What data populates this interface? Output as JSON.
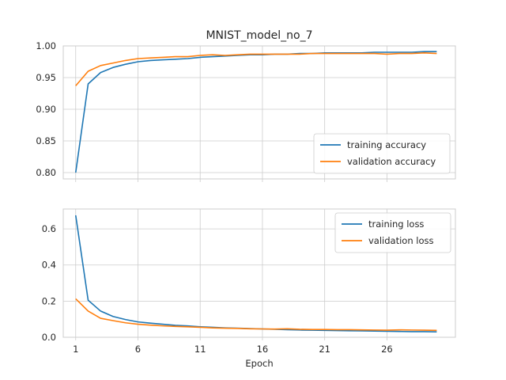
{
  "chart_data": [
    {
      "type": "line",
      "title": "MNIST_model_no_7",
      "xlabel": "",
      "ylabel": "",
      "x": [
        1,
        2,
        3,
        4,
        5,
        6,
        7,
        8,
        9,
        10,
        11,
        12,
        13,
        14,
        15,
        16,
        17,
        18,
        19,
        20,
        21,
        22,
        23,
        24,
        25,
        26,
        27,
        28,
        29,
        30
      ],
      "xticks": [
        1,
        6,
        11,
        16,
        21,
        26
      ],
      "xlim": [
        0,
        31.5
      ],
      "ylim": [
        0.79,
        1.0
      ],
      "yticks": [
        "0.80",
        "0.85",
        "0.90",
        "0.95",
        "1.00"
      ],
      "grid": true,
      "legend_position": "lower-right",
      "series": [
        {
          "name": "training accuracy",
          "color": "#1f77b4",
          "values": [
            0.8,
            0.94,
            0.958,
            0.966,
            0.971,
            0.975,
            0.977,
            0.978,
            0.979,
            0.98,
            0.982,
            0.983,
            0.984,
            0.985,
            0.986,
            0.986,
            0.987,
            0.987,
            0.988,
            0.988,
            0.989,
            0.989,
            0.989,
            0.989,
            0.99,
            0.99,
            0.99,
            0.99,
            0.991,
            0.991
          ]
        },
        {
          "name": "validation accuracy",
          "color": "#ff7f0e",
          "values": [
            0.937,
            0.96,
            0.969,
            0.973,
            0.977,
            0.98,
            0.981,
            0.982,
            0.983,
            0.983,
            0.985,
            0.986,
            0.985,
            0.986,
            0.987,
            0.987,
            0.987,
            0.987,
            0.987,
            0.988,
            0.988,
            0.988,
            0.988,
            0.988,
            0.988,
            0.987,
            0.988,
            0.988,
            0.989,
            0.988
          ]
        }
      ]
    },
    {
      "type": "line",
      "title": "",
      "xlabel": "Epoch",
      "ylabel": "",
      "x": [
        1,
        2,
        3,
        4,
        5,
        6,
        7,
        8,
        9,
        10,
        11,
        12,
        13,
        14,
        15,
        16,
        17,
        18,
        19,
        20,
        21,
        22,
        23,
        24,
        25,
        26,
        27,
        28,
        29,
        30
      ],
      "xticks": [
        1,
        6,
        11,
        16,
        21,
        26
      ],
      "xlim": [
        0,
        31.5
      ],
      "ylim": [
        0.0,
        0.71
      ],
      "yticks": [
        "0.0",
        "0.2",
        "0.4",
        "0.6"
      ],
      "grid": true,
      "legend_position": "upper-right",
      "series": [
        {
          "name": "training loss",
          "color": "#1f77b4",
          "values": [
            0.675,
            0.205,
            0.145,
            0.115,
            0.098,
            0.085,
            0.078,
            0.072,
            0.066,
            0.063,
            0.058,
            0.055,
            0.052,
            0.05,
            0.048,
            0.046,
            0.044,
            0.042,
            0.04,
            0.039,
            0.038,
            0.037,
            0.036,
            0.035,
            0.034,
            0.033,
            0.032,
            0.031,
            0.031,
            0.03
          ]
        },
        {
          "name": "validation loss",
          "color": "#ff7f0e",
          "values": [
            0.213,
            0.145,
            0.105,
            0.092,
            0.08,
            0.072,
            0.067,
            0.063,
            0.06,
            0.058,
            0.055,
            0.052,
            0.05,
            0.049,
            0.047,
            0.046,
            0.045,
            0.047,
            0.044,
            0.043,
            0.043,
            0.042,
            0.042,
            0.041,
            0.04,
            0.039,
            0.041,
            0.04,
            0.039,
            0.038
          ]
        }
      ]
    }
  ]
}
